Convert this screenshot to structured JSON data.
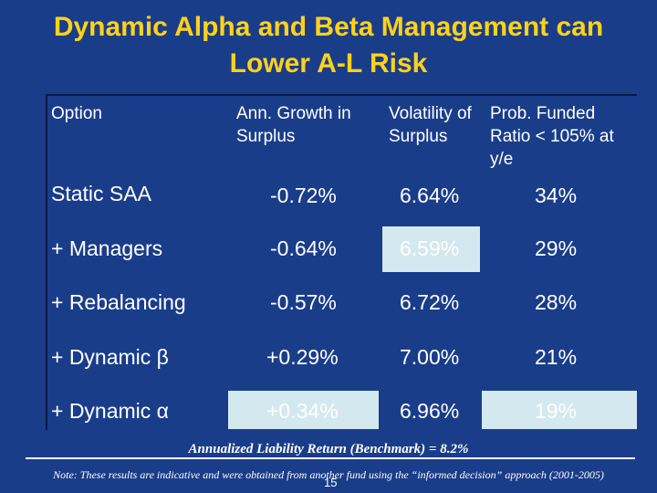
{
  "title": "Dynamic Alpha and Beta Management can Lower A-L Risk",
  "table": {
    "headers": [
      "Option",
      "Ann. Growth in Surplus",
      "Volatility of Surplus",
      "Prob. Funded Ratio < 105% at y/e"
    ],
    "rows": [
      {
        "option": "Static SAA",
        "growth": "-0.72%",
        "volatility": "6.64%",
        "prob": "34%"
      },
      {
        "option": "+ Managers",
        "growth": "-0.64%",
        "volatility": "6.59%",
        "prob": "29%"
      },
      {
        "option": "+ Rebalancing",
        "growth": "-0.57%",
        "volatility": "6.72%",
        "prob": "28%"
      },
      {
        "option": "+ Dynamic β",
        "growth": "+0.29%",
        "volatility": "7.00%",
        "prob": "21%"
      },
      {
        "option": "+ Dynamic α",
        "growth": "+0.34%",
        "volatility": "6.96%",
        "prob": "19%"
      }
    ]
  },
  "benchmark_note": "Annualized Liability Return (Benchmark) = 8.2%",
  "footnote": "Note: These results are indicative and were obtained from another fund using the “informed decision” approach (2001-2005)",
  "page_number": "15",
  "colors": {
    "background": "#1a3d8a",
    "title": "#ffd21a",
    "highlight": "#d4e8ef"
  }
}
